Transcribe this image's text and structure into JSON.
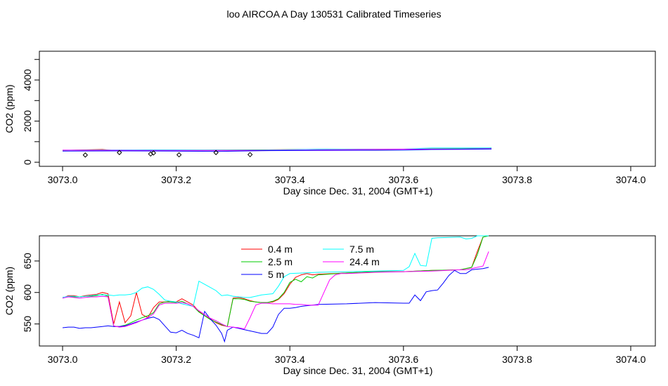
{
  "title": "loo AIRCOA A  Day 130531  Calibrated Timeseries",
  "colors": {
    "0.4 m": "#ff0000",
    "2.5 m": "#00cc00",
    "5 m": "#0000ff",
    "7.5 m": "#00ffff",
    "24.4 m": "#ff00ff",
    "points": "#000000",
    "axis": "#000000"
  },
  "chart_data": [
    {
      "type": "line",
      "xlabel": "Day since Dec. 31, 2004 (GMT+1)",
      "ylabel": "CO2 (ppm)",
      "xlim": [
        3073.0,
        3074.0
      ],
      "ylim": [
        -200,
        5400
      ],
      "xticks": [
        "3073.0",
        "3073.2",
        "3073.4",
        "3073.6",
        "3073.8",
        "3074.0"
      ],
      "yticks": [
        "0",
        "2000",
        "4000"
      ],
      "legend": "none",
      "series": [
        {
          "name": "0.4 m",
          "x": [
            3073.0,
            3073.07,
            3073.09,
            3073.15,
            3073.25,
            3073.35,
            3073.45,
            3073.55,
            3073.6,
            3073.7,
            3073.755
          ],
          "y": [
            580,
            620,
            580,
            585,
            590,
            600,
            620,
            630,
            635,
            650,
            690
          ]
        },
        {
          "name": "2.5 m",
          "x": [
            3073.0,
            3073.07,
            3073.09,
            3073.15,
            3073.25,
            3073.35,
            3073.45,
            3073.55,
            3073.6,
            3073.7,
            3073.755
          ],
          "y": [
            582,
            600,
            570,
            595,
            588,
            600,
            622,
            632,
            636,
            652,
            692
          ]
        },
        {
          "name": "7.5 m",
          "x": [
            3073.0,
            3073.15,
            3073.25,
            3073.35,
            3073.45,
            3073.55,
            3073.6,
            3073.65,
            3073.7,
            3073.755
          ],
          "y": [
            590,
            600,
            595,
            590,
            625,
            635,
            640,
            690,
            690,
            695
          ]
        },
        {
          "name": "24.4 m",
          "x": [
            3073.0,
            3073.15,
            3073.25,
            3073.35,
            3073.45,
            3073.55,
            3073.6,
            3073.7,
            3073.755
          ],
          "y": [
            590,
            580,
            575,
            580,
            600,
            630,
            635,
            640,
            665
          ]
        },
        {
          "name": "5 m",
          "x": [
            3073.0,
            3073.1,
            3073.2,
            3073.28,
            3073.35,
            3073.45,
            3073.55,
            3073.6,
            3073.65,
            3073.7,
            3073.755
          ],
          "y": [
            545,
            550,
            540,
            530,
            560,
            580,
            583,
            590,
            620,
            630,
            640
          ]
        }
      ],
      "points": {
        "x": [
          3073.04,
          3073.1,
          3073.155,
          3073.16,
          3073.205,
          3073.27,
          3073.33
        ],
        "y": [
          350,
          470,
          400,
          450,
          360,
          470,
          370
        ]
      }
    },
    {
      "type": "line",
      "xlabel": "Day since Dec. 31, 2004 (GMT+1)",
      "ylabel": "CO2 (ppm)",
      "xlim": [
        3073.0,
        3074.0
      ],
      "ylim": [
        515,
        690
      ],
      "xticks": [
        "3073.0",
        "3073.2",
        "3073.4",
        "3073.6",
        "3073.8",
        "3074.0"
      ],
      "yticks": [
        "550",
        "600",
        "650"
      ],
      "legend": "top-center",
      "series": [
        {
          "name": "0.4 m",
          "x": [
            3073.0,
            3073.01,
            3073.02,
            3073.03,
            3073.04,
            3073.05,
            3073.06,
            3073.07,
            3073.08,
            3073.09,
            3073.1,
            3073.11,
            3073.12,
            3073.13,
            3073.14,
            3073.15,
            3073.16,
            3073.17,
            3073.18,
            3073.19,
            3073.2,
            3073.21,
            3073.22,
            3073.23,
            3073.24,
            3073.25,
            3073.26,
            3073.27,
            3073.28,
            3073.29,
            3073.3,
            3073.31,
            3073.32,
            3073.33,
            3073.34,
            3073.35,
            3073.36,
            3073.37,
            3073.38,
            3073.39,
            3073.4,
            3073.41,
            3073.42,
            3073.43,
            3073.44,
            3073.45,
            3073.5,
            3073.55,
            3073.6,
            3073.65,
            3073.7,
            3073.72,
            3073.73,
            3073.74,
            3073.75
          ],
          "y": [
            591,
            595,
            595,
            593,
            595,
            596,
            597,
            600,
            598,
            550,
            585,
            552,
            563,
            600,
            565,
            560,
            576,
            585,
            585,
            586,
            585,
            590,
            585,
            580,
            570,
            563,
            558,
            552,
            548,
            546,
            591,
            592,
            590,
            587,
            585,
            584,
            584,
            585,
            589,
            598,
            613,
            624,
            628,
            630,
            628,
            629,
            631,
            633,
            633,
            635,
            636,
            640,
            665,
            688,
            690
          ]
        },
        {
          "name": "2.5 m",
          "x": [
            3073.0,
            3073.01,
            3073.02,
            3073.03,
            3073.04,
            3073.05,
            3073.06,
            3073.07,
            3073.08,
            3073.09,
            3073.1,
            3073.11,
            3073.12,
            3073.13,
            3073.14,
            3073.15,
            3073.16,
            3073.17,
            3073.18,
            3073.19,
            3073.2,
            3073.21,
            3073.22,
            3073.23,
            3073.24,
            3073.25,
            3073.26,
            3073.27,
            3073.28,
            3073.29,
            3073.3,
            3073.31,
            3073.32,
            3073.33,
            3073.34,
            3073.35,
            3073.36,
            3073.37,
            3073.38,
            3073.39,
            3073.4,
            3073.41,
            3073.42,
            3073.43,
            3073.44,
            3073.45,
            3073.5,
            3073.55,
            3073.6,
            3073.65,
            3073.7,
            3073.72,
            3073.73,
            3073.74,
            3073.75
          ],
          "y": [
            592,
            593,
            593,
            593,
            594,
            594,
            595,
            597,
            594,
            546,
            546,
            548,
            552,
            556,
            560,
            563,
            568,
            582,
            585,
            585,
            584,
            586,
            582,
            578,
            569,
            563,
            557,
            553,
            549,
            546,
            590,
            590,
            589,
            586,
            585,
            584,
            584,
            586,
            590,
            600,
            616,
            621,
            617,
            625,
            623,
            628,
            631,
            633,
            633,
            635,
            636,
            640,
            660,
            688,
            690
          ]
        },
        {
          "name": "5 m",
          "x": [
            3073.0,
            3073.01,
            3073.02,
            3073.03,
            3073.04,
            3073.05,
            3073.06,
            3073.07,
            3073.08,
            3073.09,
            3073.1,
            3073.11,
            3073.12,
            3073.13,
            3073.14,
            3073.15,
            3073.16,
            3073.17,
            3073.18,
            3073.19,
            3073.2,
            3073.21,
            3073.22,
            3073.23,
            3073.24,
            3073.25,
            3073.26,
            3073.27,
            3073.28,
            3073.285,
            3073.29,
            3073.3,
            3073.31,
            3073.32,
            3073.33,
            3073.34,
            3073.35,
            3073.36,
            3073.37,
            3073.38,
            3073.39,
            3073.4,
            3073.41,
            3073.42,
            3073.43,
            3073.44,
            3073.45,
            3073.5,
            3073.55,
            3073.6,
            3073.61,
            3073.62,
            3073.63,
            3073.64,
            3073.65,
            3073.66,
            3073.67,
            3073.68,
            3073.69,
            3073.7,
            3073.71,
            3073.72,
            3073.73,
            3073.74,
            3073.75
          ],
          "y": [
            544,
            545,
            545,
            543,
            544,
            544,
            545,
            546,
            547,
            546,
            546,
            547,
            550,
            553,
            556,
            559,
            561,
            557,
            547,
            537,
            536,
            540,
            535,
            532,
            528,
            570,
            558,
            548,
            535,
            522,
            540,
            545,
            543,
            541,
            539,
            537,
            535,
            535,
            545,
            565,
            575,
            575,
            576,
            578,
            579,
            580,
            581,
            582,
            584,
            583,
            583,
            596,
            587,
            601,
            603,
            604,
            615,
            627,
            635,
            630,
            630,
            636,
            637,
            638,
            640
          ]
        },
        {
          "name": "7.5 m",
          "x": [
            3073.0,
            3073.01,
            3073.02,
            3073.03,
            3073.04,
            3073.05,
            3073.06,
            3073.07,
            3073.08,
            3073.09,
            3073.1,
            3073.11,
            3073.12,
            3073.13,
            3073.14,
            3073.15,
            3073.16,
            3073.17,
            3073.18,
            3073.19,
            3073.2,
            3073.21,
            3073.22,
            3073.23,
            3073.24,
            3073.25,
            3073.26,
            3073.27,
            3073.28,
            3073.29,
            3073.3,
            3073.31,
            3073.32,
            3073.33,
            3073.34,
            3073.35,
            3073.36,
            3073.37,
            3073.38,
            3073.39,
            3073.4,
            3073.45,
            3073.5,
            3073.55,
            3073.6,
            3073.61,
            3073.62,
            3073.63,
            3073.64,
            3073.65,
            3073.66,
            3073.7,
            3073.71,
            3073.72,
            3073.73,
            3073.74,
            3073.75
          ],
          "y": [
            592,
            594,
            594,
            593,
            594,
            595,
            596,
            596,
            596,
            595,
            596,
            596,
            597,
            600,
            607,
            609,
            605,
            597,
            588,
            586,
            585,
            582,
            580,
            578,
            618,
            613,
            608,
            603,
            595,
            596,
            594,
            593,
            592,
            592,
            594,
            596,
            597,
            598,
            610,
            625,
            630,
            632,
            633,
            634,
            635,
            641,
            662,
            643,
            642,
            686,
            687,
            688,
            685,
            686,
            690,
            690,
            690
          ]
        },
        {
          "name": "24.4 m",
          "x": [
            3073.0,
            3073.01,
            3073.02,
            3073.03,
            3073.04,
            3073.05,
            3073.06,
            3073.07,
            3073.08,
            3073.09,
            3073.1,
            3073.11,
            3073.12,
            3073.13,
            3073.14,
            3073.15,
            3073.16,
            3073.17,
            3073.18,
            3073.19,
            3073.2,
            3073.21,
            3073.22,
            3073.23,
            3073.24,
            3073.25,
            3073.26,
            3073.27,
            3073.28,
            3073.29,
            3073.3,
            3073.31,
            3073.32,
            3073.33,
            3073.34,
            3073.35,
            3073.36,
            3073.37,
            3073.38,
            3073.39,
            3073.4,
            3073.41,
            3073.42,
            3073.43,
            3073.44,
            3073.45,
            3073.46,
            3073.47,
            3073.48,
            3073.49,
            3073.5,
            3073.55,
            3073.6,
            3073.65,
            3073.7,
            3073.71,
            3073.72,
            3073.73,
            3073.74,
            3073.75
          ],
          "y": [
            591,
            593,
            592,
            591,
            592,
            593,
            593,
            594,
            593,
            547,
            545,
            546,
            549,
            552,
            556,
            560,
            566,
            580,
            583,
            583,
            583,
            584,
            582,
            578,
            571,
            565,
            559,
            555,
            550,
            546,
            545,
            544,
            542,
            560,
            580,
            583,
            583,
            582,
            582,
            582,
            582,
            581,
            581,
            580,
            580,
            580,
            600,
            620,
            628,
            630,
            630,
            632,
            633,
            634,
            636,
            636,
            638,
            640,
            642,
            665
          ]
        }
      ]
    }
  ]
}
